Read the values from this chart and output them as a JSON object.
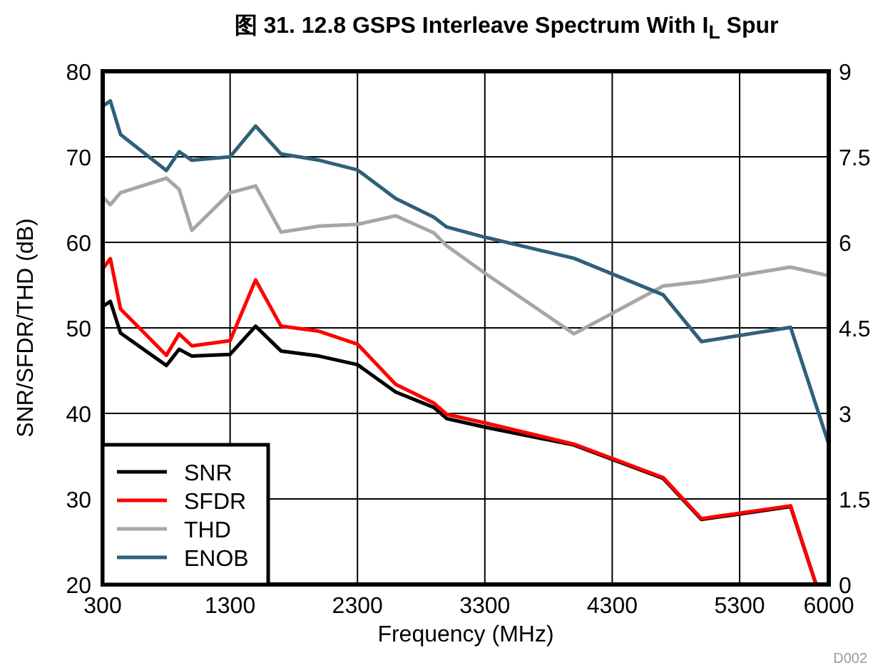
{
  "chart_data": {
    "type": "line",
    "title": "图 31. 12.8 GSPS Interleave Spectrum With I$_{L}$ Spur",
    "xlabel": "Frequency (MHz)",
    "ylabel": "SNR/SFDR/THD (dB)",
    "annotations": [
      "D002"
    ],
    "xlim": [
      300,
      6000
    ],
    "xticks": [
      300,
      1300,
      2300,
      3300,
      4300,
      5300,
      6000
    ],
    "ylim": [
      20,
      80
    ],
    "yticks": [
      20,
      30,
      40,
      50,
      60,
      70,
      80
    ],
    "y2lim": [
      0,
      9
    ],
    "y2ticks": [
      0,
      1.5,
      3,
      4.5,
      6,
      7.5,
      9
    ],
    "grid": true,
    "legend": "bottom left",
    "series": [
      {
        "name": "SNR",
        "color": "#000000",
        "x": [
          300,
          360,
          440,
          800,
          900,
          1000,
          1300,
          1500,
          1700,
          2000,
          2300,
          2600,
          2900,
          3000,
          3300,
          4000,
          4700,
          5000,
          5700,
          5900
        ],
        "values": [
          52.5,
          53.1,
          49.4,
          45.6,
          47.5,
          46.7,
          46.9,
          50.2,
          47.3,
          46.7,
          45.7,
          42.5,
          40.7,
          39.4,
          38.4,
          36.3,
          32.4,
          27.6,
          29.1,
          20
        ]
      },
      {
        "name": "SFDR",
        "color": "#ff0000",
        "x": [
          300,
          360,
          440,
          800,
          900,
          1000,
          1300,
          1500,
          1700,
          2000,
          2300,
          2600,
          2900,
          3000,
          3300,
          4000,
          4700,
          5000,
          5700,
          5900
        ],
        "values": [
          56.9,
          58.1,
          52.2,
          46.8,
          49.3,
          47.9,
          48.5,
          55.6,
          50.2,
          49.6,
          48.1,
          43.4,
          41.2,
          39.9,
          38.9,
          36.4,
          32.5,
          27.7,
          29.2,
          20
        ]
      },
      {
        "name": "THD",
        "color": "#a6a6a6",
        "x": [
          300,
          360,
          440,
          800,
          900,
          1000,
          1300,
          1500,
          1700,
          2000,
          2300,
          2600,
          2900,
          3000,
          3300,
          4000,
          4700,
          5000,
          5700,
          6000
        ],
        "values": [
          65.3,
          64.4,
          65.8,
          67.5,
          66.2,
          61.4,
          65.8,
          66.6,
          61.2,
          61.9,
          62.1,
          63.1,
          61.1,
          59.6,
          56.4,
          49.3,
          54.9,
          55.4,
          57.1,
          56.1
        ]
      },
      {
        "name": "ENOB",
        "color": "#2f6079",
        "axis": "y2",
        "x": [
          300,
          360,
          440,
          800,
          900,
          1000,
          1300,
          1500,
          1700,
          2000,
          2300,
          2600,
          2900,
          3000,
          3300,
          4000,
          4700,
          5000,
          5700,
          6000
        ],
        "values": [
          8.39,
          8.48,
          7.89,
          7.26,
          7.59,
          7.44,
          7.5,
          8.04,
          7.55,
          7.44,
          7.27,
          6.77,
          6.44,
          6.27,
          6.09,
          5.72,
          5.08,
          4.26,
          4.51,
          2.46
        ]
      }
    ]
  }
}
